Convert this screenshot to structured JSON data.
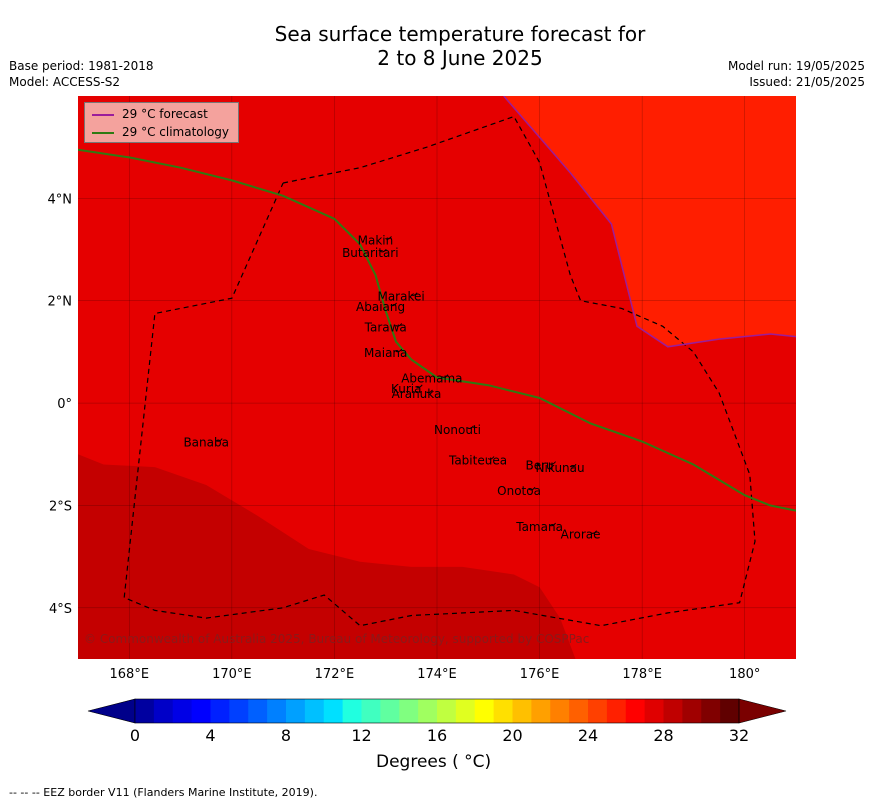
{
  "title_line1": "Sea surface temperature forecast for",
  "title_line2": "2 to 8 June 2025",
  "meta_left": [
    "Base period: 1981-2018",
    "Model: ACCESS-S2"
  ],
  "meta_right": [
    "Model run: 19/05/2025",
    "Issued: 21/05/2025"
  ],
  "legend": [
    {
      "label": "29 °C  forecast",
      "color": "#9b1d9b"
    },
    {
      "label": "29 °C  climatology",
      "color": "#2f7a12"
    }
  ],
  "map": {
    "lon_range": [
      167,
      181
    ],
    "lat_range": [
      -5,
      6
    ],
    "lon_ticks": [
      {
        "v": 168,
        "t": "168°E"
      },
      {
        "v": 170,
        "t": "170°E"
      },
      {
        "v": 172,
        "t": "172°E"
      },
      {
        "v": 174,
        "t": "174°E"
      },
      {
        "v": 176,
        "t": "176°E"
      },
      {
        "v": 178,
        "t": "178°E"
      },
      {
        "v": 180,
        "t": "180°"
      }
    ],
    "lat_ticks": [
      {
        "v": 4,
        "t": "4°N"
      },
      {
        "v": 2,
        "t": "2°N"
      },
      {
        "v": 0,
        "t": "0°"
      },
      {
        "v": -2,
        "t": "2°S"
      },
      {
        "v": -4,
        "t": "4°S"
      }
    ],
    "colors": {
      "base": "#e50000",
      "warm": "#ff1e00",
      "cool": "#c40000",
      "eez": "#000000"
    },
    "islands": [
      {
        "name": "Makin",
        "lon": 172.8,
        "lat": 3.1
      },
      {
        "name": "Butaritari",
        "lon": 172.7,
        "lat": 2.85
      },
      {
        "name": "Marakei",
        "lon": 173.3,
        "lat": 2.0
      },
      {
        "name": "Abaiang",
        "lon": 172.9,
        "lat": 1.8
      },
      {
        "name": "Tarawa",
        "lon": 173.0,
        "lat": 1.4
      },
      {
        "name": "Maiana",
        "lon": 173.0,
        "lat": 0.9
      },
      {
        "name": "Abemama",
        "lon": 173.9,
        "lat": 0.4
      },
      {
        "name": "Kuria",
        "lon": 173.4,
        "lat": 0.2
      },
      {
        "name": "Aranuka",
        "lon": 173.6,
        "lat": 0.1
      },
      {
        "name": "Nonouti",
        "lon": 174.4,
        "lat": -0.6
      },
      {
        "name": "Banaba",
        "lon": 169.5,
        "lat": -0.85
      },
      {
        "name": "Tabiteuea",
        "lon": 174.8,
        "lat": -1.2
      },
      {
        "name": "Beru",
        "lon": 176.0,
        "lat": -1.3
      },
      {
        "name": "Nikunau",
        "lon": 176.4,
        "lat": -1.35
      },
      {
        "name": "Onotoa",
        "lon": 175.6,
        "lat": -1.8
      },
      {
        "name": "Tamana",
        "lon": 176.0,
        "lat": -2.5
      },
      {
        "name": "Arorae",
        "lon": 176.8,
        "lat": -2.65
      }
    ],
    "forecast_29": [
      [
        175.3,
        6
      ],
      [
        176.6,
        4.5
      ],
      [
        177.4,
        3.5
      ],
      [
        177.9,
        1.5
      ],
      [
        178.5,
        1.1
      ],
      [
        179.5,
        1.25
      ],
      [
        180.5,
        1.35
      ],
      [
        181,
        1.3
      ]
    ],
    "climatology_29": [
      [
        167,
        4.95
      ],
      [
        168,
        4.8
      ],
      [
        169,
        4.6
      ],
      [
        170,
        4.35
      ],
      [
        171,
        4.05
      ],
      [
        172,
        3.6
      ],
      [
        172.5,
        3.1
      ],
      [
        172.8,
        2.5
      ],
      [
        173.0,
        1.8
      ],
      [
        173.2,
        1.2
      ],
      [
        173.5,
        0.85
      ],
      [
        174,
        0.5
      ],
      [
        175,
        0.35
      ],
      [
        176,
        0.1
      ],
      [
        177,
        -0.4
      ],
      [
        178,
        -0.75
      ],
      [
        179,
        -1.2
      ],
      [
        180,
        -1.8
      ],
      [
        180.5,
        -2.0
      ],
      [
        181,
        -2.1
      ]
    ],
    "eez": [
      [
        171,
        4.3
      ],
      [
        172.5,
        4.6
      ],
      [
        173.8,
        5.0
      ],
      [
        175.5,
        5.6
      ],
      [
        176,
        4.7
      ],
      [
        176.6,
        2.5
      ],
      [
        176.8,
        2.0
      ],
      [
        177.6,
        1.85
      ],
      [
        178.4,
        1.5
      ],
      [
        179,
        1.0
      ],
      [
        179.5,
        0.2
      ],
      [
        179.8,
        -0.6
      ],
      [
        180.1,
        -1.4
      ],
      [
        180.2,
        -2.7
      ],
      [
        179.9,
        -3.9
      ],
      [
        178.5,
        -4.1
      ],
      [
        177.2,
        -4.35
      ],
      [
        175.5,
        -4.05
      ],
      [
        173.5,
        -4.15
      ],
      [
        172.5,
        -4.35
      ],
      [
        171.8,
        -3.75
      ],
      [
        171,
        -4.0
      ],
      [
        169.5,
        -4.2
      ],
      [
        168.5,
        -4.05
      ],
      [
        167.9,
        -3.8
      ],
      [
        168.5,
        1.75
      ],
      [
        170,
        2.05
      ],
      [
        171,
        4.3
      ]
    ]
  },
  "colorbar": {
    "min": 0,
    "max": 32,
    "step": 1,
    "tick_labels": [
      "0",
      "4",
      "8",
      "12",
      "16",
      "20",
      "24",
      "28",
      "32"
    ],
    "colors": [
      "#0000a0",
      "#0000c8",
      "#0000e6",
      "#0000ff",
      "#0020ff",
      "#0040ff",
      "#0060ff",
      "#0080ff",
      "#00a0ff",
      "#00c0ff",
      "#00e0ff",
      "#20ffe0",
      "#40ffc0",
      "#60ffa0",
      "#80ff80",
      "#a0ff60",
      "#c0ff40",
      "#e0ff20",
      "#ffff00",
      "#ffe000",
      "#ffc000",
      "#ffa000",
      "#ff8000",
      "#ff6000",
      "#ff4000",
      "#ff2000",
      "#ff0000",
      "#e00000",
      "#c00000",
      "#a00000",
      "#800000",
      "#600000"
    ],
    "under_color": "#00008a",
    "over_color": "#7a0000",
    "label": "Degrees ( °C)"
  },
  "copyright": "© Commonwealth of Australia 2025, Bureau of Meteorology, supported by COSPPac",
  "footer": "--  --  -- EEZ border V11 (Flanders Marine Institute, 2019)."
}
